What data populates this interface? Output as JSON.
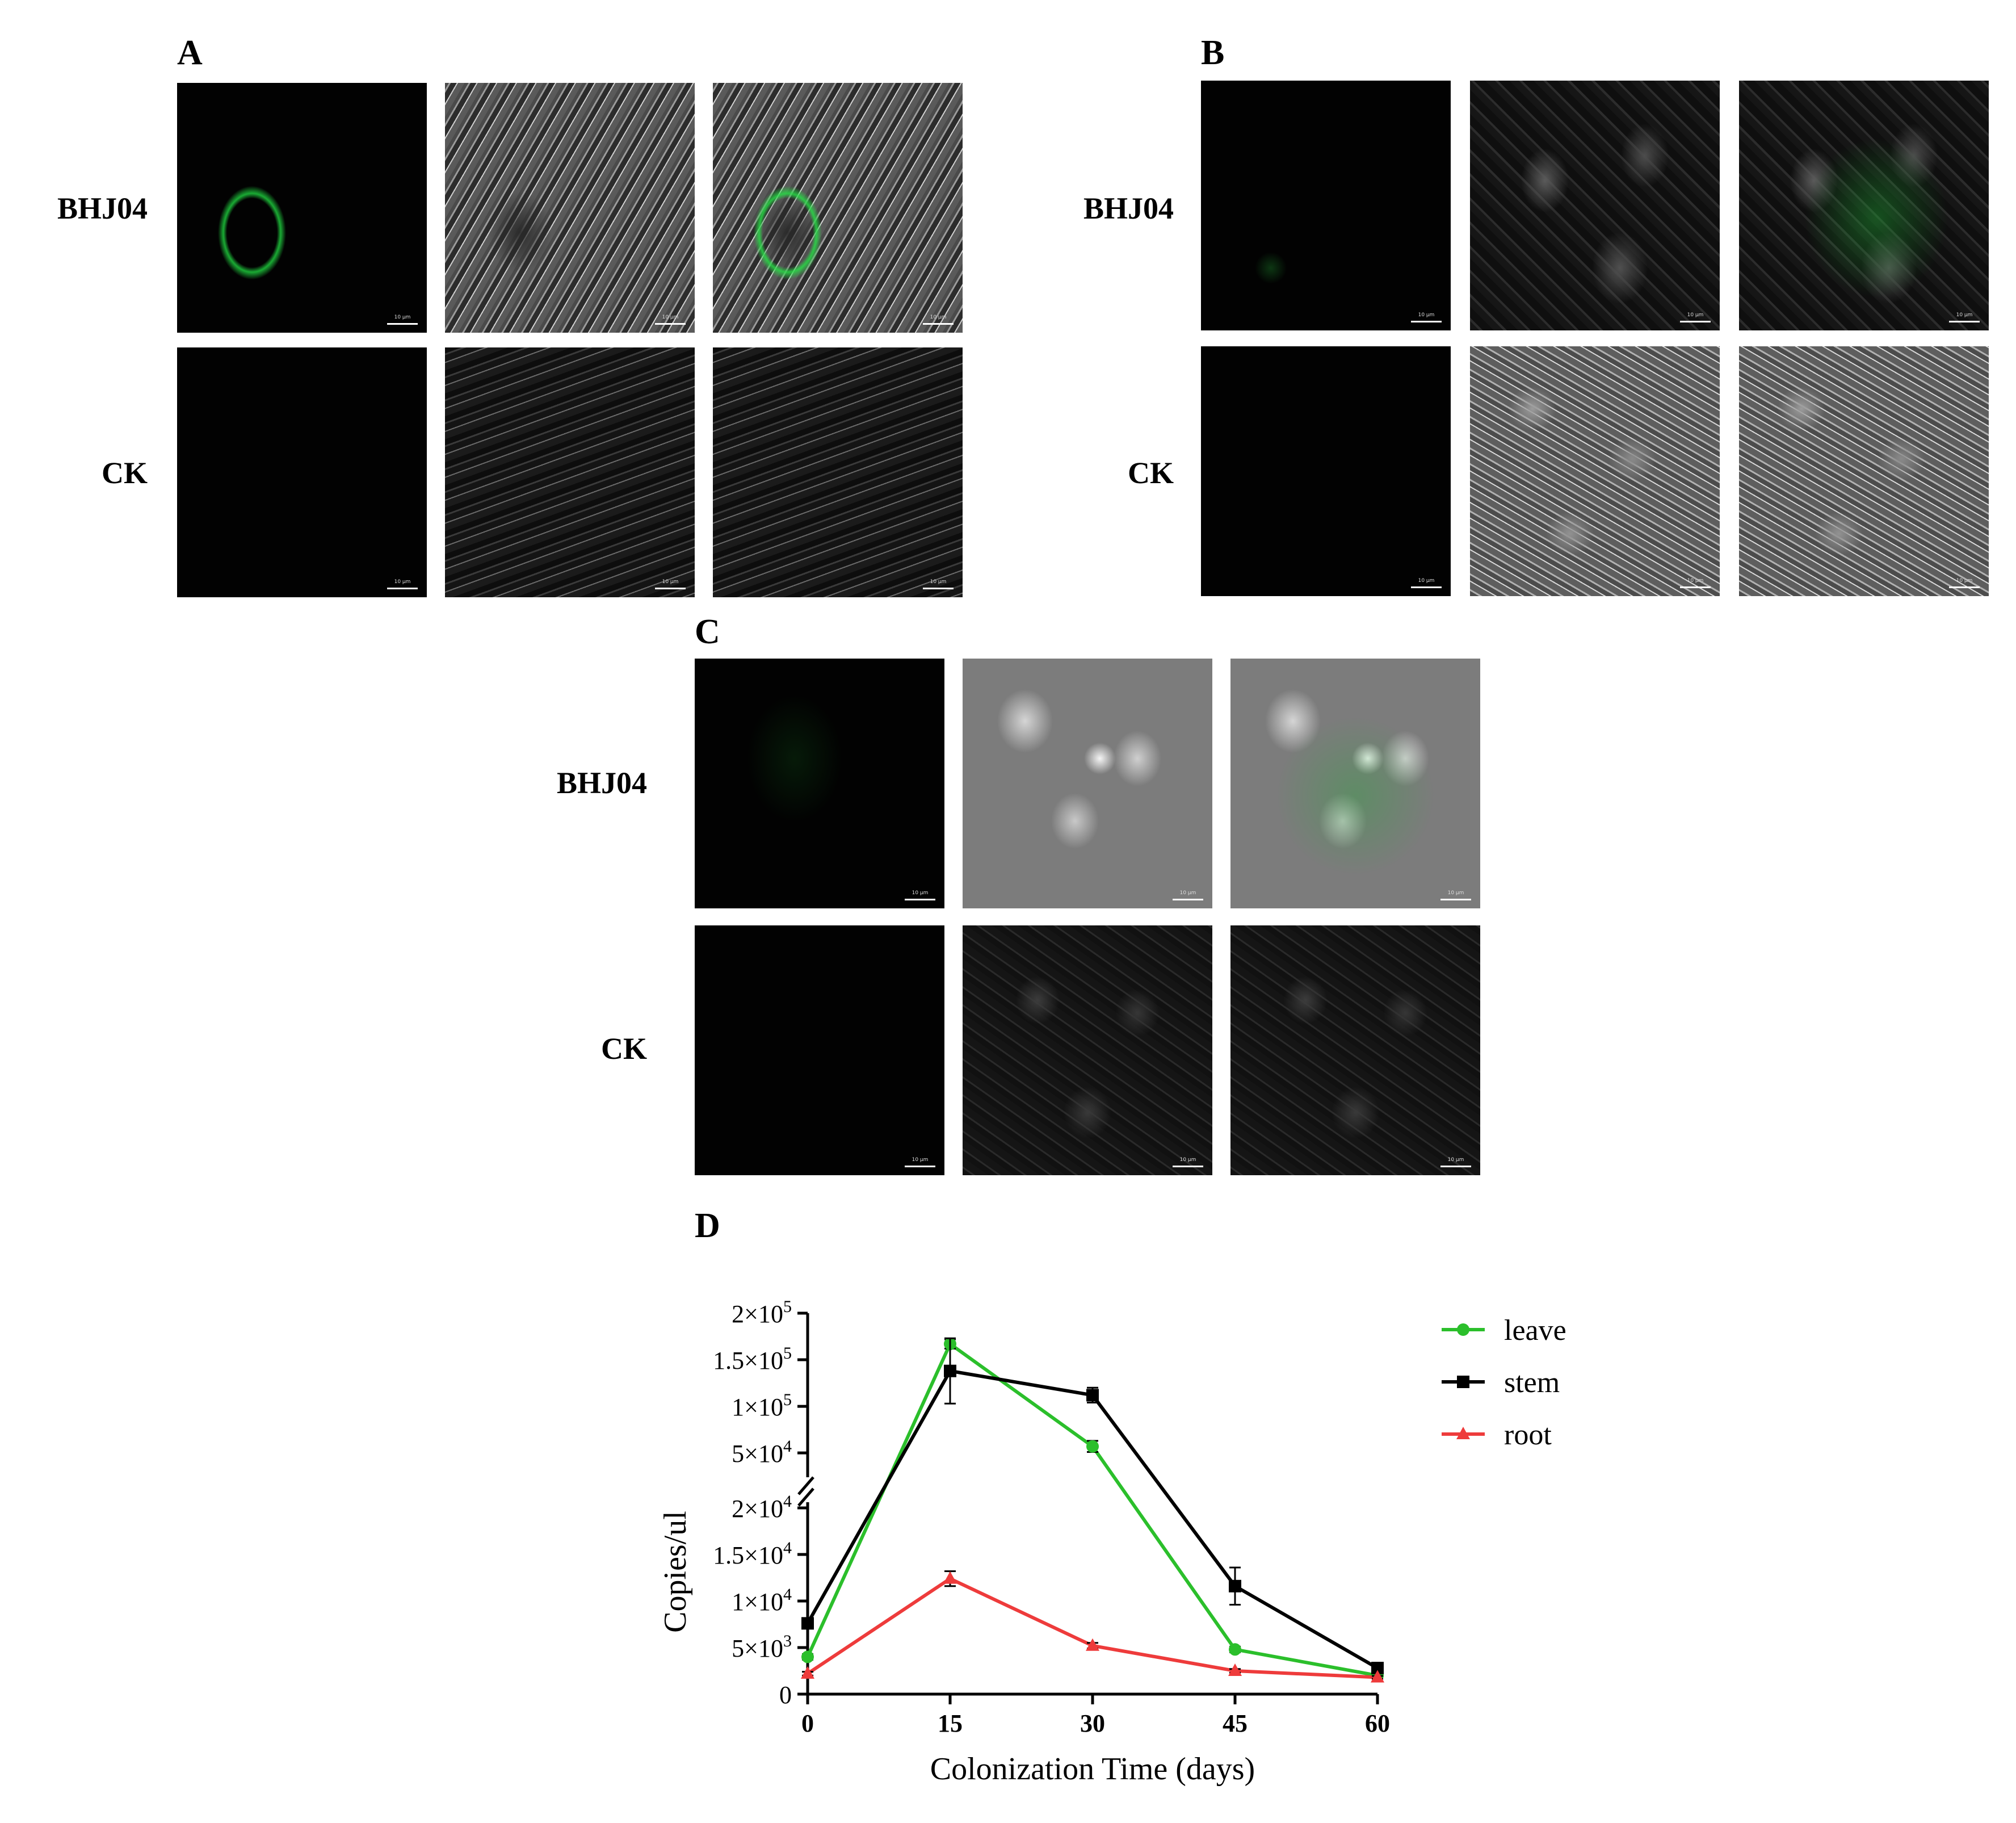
{
  "panels": {
    "A": {
      "letter": "A",
      "rows": [
        {
          "label": "BHJ04"
        },
        {
          "label": "CK"
        }
      ]
    },
    "B": {
      "letter": "B",
      "rows": [
        {
          "label": "BHJ04"
        },
        {
          "label": "CK"
        }
      ]
    },
    "C": {
      "letter": "C",
      "rows": [
        {
          "label": "BHJ04"
        },
        {
          "label": "CK"
        }
      ]
    },
    "D": {
      "letter": "D"
    }
  },
  "scale_bar_text": "10 μm",
  "colors": {
    "leave": "#2bbf2b",
    "stem": "#000000",
    "root": "#ee3b3b"
  },
  "chart_data": {
    "type": "line",
    "xlabel": "Colonization Time (days)",
    "ylabel": "Copies/ul",
    "x": [
      0,
      15,
      30,
      45,
      60
    ],
    "x_ticks": [
      "0",
      "15",
      "30",
      "45",
      "60"
    ],
    "y_ticks_lower": [
      {
        "value": 0,
        "base": "0",
        "exp": ""
      },
      {
        "value": 5000,
        "base": "5×10",
        "exp": "3"
      },
      {
        "value": 10000,
        "base": "1×10",
        "exp": "4"
      },
      {
        "value": 15000,
        "base": "1.5×10",
        "exp": "4"
      },
      {
        "value": 20000,
        "base": "2×10",
        "exp": "4"
      }
    ],
    "y_ticks_upper": [
      {
        "value": 50000,
        "base": "5×10",
        "exp": "4"
      },
      {
        "value": 100000,
        "base": "1×10",
        "exp": "5"
      },
      {
        "value": 150000,
        "base": "1.5×10",
        "exp": "5"
      },
      {
        "value": 200000,
        "base": "2×10",
        "exp": "5"
      }
    ],
    "axis_break": {
      "lower": [
        0,
        20000
      ],
      "upper": [
        30000,
        200000
      ]
    },
    "legend_position": "right",
    "series": [
      {
        "name": "leave",
        "marker": "circle",
        "values": [
          4000,
          167000,
          57000,
          4800,
          2000
        ],
        "errors": [
          300,
          5000,
          6000,
          300,
          200
        ]
      },
      {
        "name": "stem",
        "marker": "square",
        "values": [
          7600,
          138000,
          112000,
          11600,
          2800
        ],
        "errors": [
          400,
          35000,
          8000,
          2000,
          300
        ]
      },
      {
        "name": "root",
        "marker": "triangle",
        "values": [
          2200,
          12400,
          5200,
          2500,
          1800
        ],
        "errors": [
          200,
          800,
          300,
          200,
          150
        ]
      }
    ]
  }
}
